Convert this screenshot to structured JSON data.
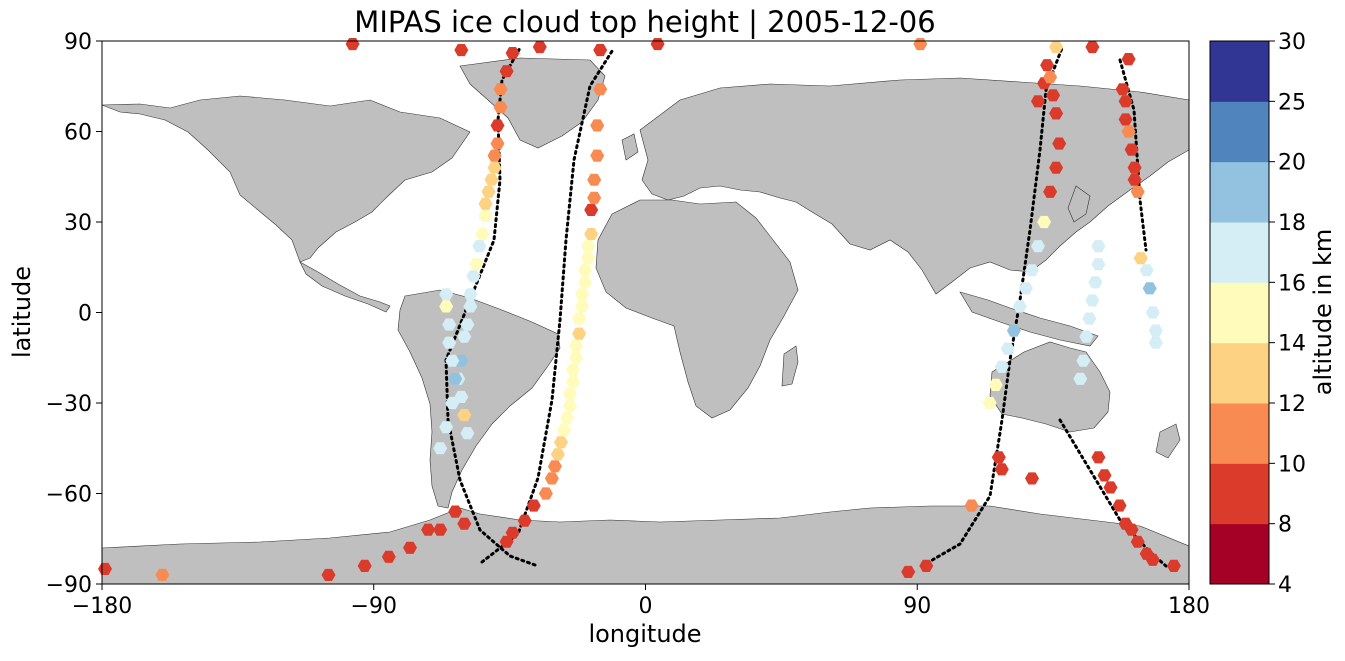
{
  "chart_data": {
    "type": "scatter",
    "title": "MIPAS ice cloud top height | 2005-12-06",
    "xlabel": "longitude",
    "ylabel": "latitude",
    "xlim": [
      -180,
      180
    ],
    "ylim": [
      -90,
      90
    ],
    "xticks": [
      -180,
      -90,
      0,
      90,
      180
    ],
    "yticks": [
      -90,
      -60,
      -30,
      0,
      30,
      60,
      90
    ],
    "xtick_labels": [
      "−180",
      "−90",
      "0",
      "90",
      "180"
    ],
    "ytick_labels": [
      "−90",
      "−60",
      "−30",
      "0",
      "30",
      "60",
      "90"
    ],
    "projection": "plate carree world map with grey land masses",
    "grid": false,
    "colorbar": {
      "label": "altitude in km",
      "position": "right",
      "levels": [
        4,
        8,
        10,
        12,
        14,
        16,
        18,
        20,
        25,
        30
      ],
      "level_labels": [
        "4",
        "8",
        "10",
        "12",
        "14",
        "16",
        "18",
        "20",
        "25",
        "30"
      ],
      "colors": [
        "#a50026",
        "#d73027",
        "#f46d43",
        "#fdae61",
        "#fee090",
        "#e0f3f8",
        "#abd9e9",
        "#74add1",
        "#4575b4",
        "#313695"
      ],
      "display_colors": [
        "#a50026",
        "#db3b2b",
        "#f88b51",
        "#fdd283",
        "#fffcbb",
        "#d5edf4",
        "#92c2df",
        "#4f85bc",
        "#313695"
      ]
    },
    "series": [
      {
        "track": "ascending_americas_east",
        "lon": [
          -46,
          -44,
          -40,
          -37,
          -33,
          -31,
          -30,
          -29,
          -28,
          -27,
          -26,
          -25,
          -25,
          -24,
          -24,
          -23,
          -23,
          -22,
          -22,
          -21,
          -21,
          -20,
          -20,
          -19,
          -19,
          -18,
          -18,
          -17,
          -17,
          -16,
          -16,
          -15
        ],
        "lat": [
          -76,
          -73,
          -69,
          -64,
          -60,
          -55,
          -51,
          -47,
          -43,
          -39,
          -35,
          -31,
          -27,
          -23,
          -19,
          -15,
          -11,
          -7,
          -2,
          2,
          6,
          10,
          14,
          18,
          22,
          26,
          34,
          38,
          44,
          52,
          62,
          74
        ],
        "alt": [
          9,
          9,
          9,
          9,
          10,
          11,
          11,
          12,
          13,
          14,
          14,
          15,
          15,
          14,
          14,
          15,
          14,
          13,
          14,
          15,
          14,
          15,
          14,
          15,
          14,
          13,
          9,
          11,
          11,
          11,
          11,
          11
        ]
      },
      {
        "track": "descending_americas_mid",
        "lon": [
          -44,
          -46,
          -48,
          -48,
          -49,
          -49,
          -50,
          -50,
          -51,
          -52,
          -53,
          -53,
          -54,
          -55,
          -56,
          -57,
          -58,
          -58,
          -59,
          -60,
          -61,
          -62,
          -64,
          -66,
          -68
        ],
        "lat": [
          86,
          80,
          74,
          68,
          62,
          56,
          52,
          48,
          44,
          40,
          36,
          32,
          26,
          22,
          16,
          12,
          6,
          2,
          -4,
          -8,
          -16,
          -22,
          -30,
          -38,
          -45
        ],
        "alt": [
          8,
          8,
          11,
          11,
          9,
          11,
          10,
          12,
          13,
          13,
          13,
          14,
          15,
          16,
          15,
          16,
          17,
          16,
          17,
          17,
          18,
          17,
          16,
          17,
          16
        ]
      },
      {
        "track": "descending_andes",
        "lon": [
          -66,
          -66,
          -65,
          -65,
          -64,
          -63,
          -61,
          -60,
          -59
        ],
        "lat": [
          6,
          2,
          -4,
          -10,
          -16,
          -22,
          -28,
          -34,
          -40
        ],
        "alt": [
          17,
          15,
          16,
          17,
          17,
          18,
          17,
          13,
          16
        ]
      },
      {
        "track": "antarctic_coast",
        "lon": [
          -63,
          -60,
          -68,
          -72,
          -78,
          -85,
          -93,
          -105,
          -160,
          -179
        ],
        "lat": [
          -66,
          -70,
          -72,
          -72,
          -78,
          -81,
          -84,
          -87,
          -87,
          -85
        ],
        "alt": [
          8,
          8,
          8,
          8,
          8,
          8,
          9,
          9,
          10,
          9
        ]
      },
      {
        "track": "arctic_edge",
        "lon": [
          -97,
          -61,
          -35,
          -15,
          4,
          91,
          136,
          148,
          160
        ],
        "lat": [
          89,
          87,
          88,
          87,
          89,
          89,
          88,
          88,
          84
        ],
        "alt": [
          9,
          8,
          8,
          8,
          9,
          11,
          12,
          8,
          8
        ]
      },
      {
        "track": "descending_asia_west",
        "lon": [
          130,
          132,
          133,
          134,
          135,
          136,
          137,
          136,
          134,
          132,
          130,
          128,
          126,
          124,
          122,
          120,
          118,
          116,
          114
        ],
        "lat": [
          70,
          76,
          82,
          78,
          72,
          66,
          56,
          48,
          40,
          30,
          22,
          14,
          8,
          2,
          -6,
          -12,
          -18,
          -24,
          -30
        ],
        "alt": [
          8,
          9,
          8,
          11,
          8,
          8,
          8,
          8,
          9,
          14,
          16,
          17,
          16,
          17,
          18,
          17,
          16,
          15,
          15
        ]
      },
      {
        "track": "ascending_maritime",
        "lon": [
          144,
          145,
          146,
          147,
          148,
          149,
          150,
          150
        ],
        "lat": [
          -22,
          -16,
          -8,
          -2,
          4,
          10,
          16,
          22
        ],
        "alt": [
          17,
          17,
          17,
          16,
          16,
          16,
          16,
          16
        ]
      },
      {
        "track": "descending_pacific_east",
        "lon": [
          158,
          159,
          159,
          160,
          161,
          162,
          162,
          163,
          164,
          166,
          167,
          168,
          169,
          169
        ],
        "lat": [
          74,
          70,
          64,
          60,
          54,
          48,
          44,
          40,
          18,
          14,
          8,
          0,
          -6,
          -10
        ],
        "alt": [
          8,
          8,
          9,
          10,
          9,
          9,
          9,
          10,
          13,
          17,
          18,
          17,
          17,
          17
        ]
      },
      {
        "track": "southern_ocean",
        "lon": [
          108,
          117,
          118,
          128,
          150,
          152,
          154,
          157,
          159,
          161,
          163,
          166,
          168,
          175,
          87,
          93
        ],
        "lat": [
          -64,
          -48,
          -52,
          -55,
          -48,
          -54,
          -58,
          -64,
          -70,
          -72,
          -76,
          -80,
          -82,
          -84,
          -86,
          -84
        ],
        "alt": [
          11,
          9,
          9,
          8,
          9,
          8,
          8,
          8,
          9,
          9,
          8,
          8,
          8,
          8,
          8,
          8
        ]
      }
    ]
  }
}
